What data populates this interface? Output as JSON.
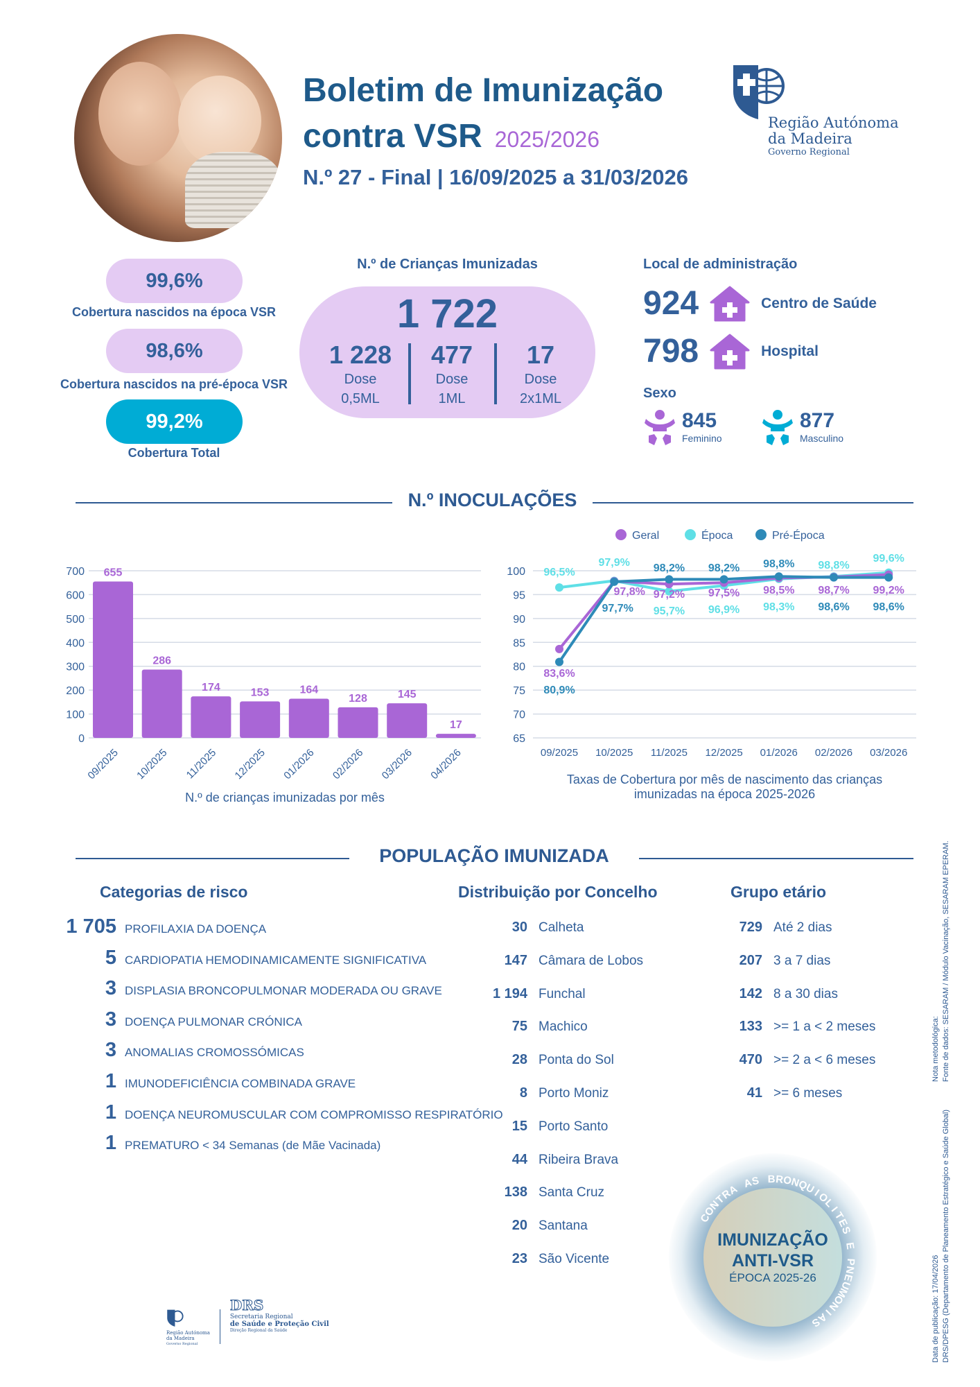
{
  "header": {
    "title_line1": "Boletim de Imunização",
    "title_line2": "contra VSR",
    "season": "2025/2026",
    "subtitle": "N.º 27 - Final | 16/09/2025 a 31/03/2026"
  },
  "logo": {
    "line1": "Região Autónoma",
    "line2": "da Madeira",
    "line3": "Governo Regional"
  },
  "coverage": [
    {
      "value": "99,6%",
      "label": "Cobertura nascidos na época VSR"
    },
    {
      "value": "98,6%",
      "label": "Cobertura nascidos na pré-época VSR"
    },
    {
      "value": "99,2%",
      "label": "Cobertura Total"
    }
  ],
  "immunized": {
    "title": "N.º de Crianças Imunizadas",
    "total": "1 722",
    "doses": [
      {
        "value": "1 228",
        "label1": "Dose",
        "label2": "0,5ML"
      },
      {
        "value": "477",
        "label1": "Dose",
        "label2": "1ML"
      },
      {
        "value": "17",
        "label1": "Dose",
        "label2": "2x1ML"
      }
    ]
  },
  "admin": {
    "title": "Local de administração",
    "items": [
      {
        "value": "924",
        "label": "Centro de Saúde"
      },
      {
        "value": "798",
        "label": "Hospital"
      }
    ]
  },
  "sex": {
    "title": "Sexo",
    "items": [
      {
        "value": "845",
        "label": "Feminino"
      },
      {
        "value": "877",
        "label": "Masculino"
      }
    ]
  },
  "sections": {
    "inoculations": "N.º INOCULAÇÕES",
    "population": "POPULAÇÃO IMUNIZADA"
  },
  "colors": {
    "purple": "#a966d6",
    "cyan": "#5fdfe6",
    "blue": "#2e8ab8",
    "text": "#33609a"
  },
  "chart_data": [
    {
      "type": "bar",
      "title": "",
      "caption": "N.º de crianças imunizadas por mês",
      "categories": [
        "09/2025",
        "10/2025",
        "11/2025",
        "12/2025",
        "01/2026",
        "02/2026",
        "03/2026",
        "04/2026"
      ],
      "values": [
        655,
        286,
        174,
        153,
        164,
        128,
        145,
        17
      ],
      "ylim": [
        0,
        700
      ],
      "yticks": [
        0,
        100,
        200,
        300,
        400,
        500,
        600,
        700
      ],
      "grid": true
    },
    {
      "type": "line",
      "caption_line1": "Taxas de Cobertura por mês de nascimento das crianças",
      "caption_line2": "imunizadas na época 2025-2026",
      "categories": [
        "09/2025",
        "10/2025",
        "11/2025",
        "12/2025",
        "01/2026",
        "02/2026",
        "03/2026"
      ],
      "ylim": [
        65,
        100
      ],
      "yticks": [
        65,
        70,
        75,
        80,
        85,
        90,
        95,
        100
      ],
      "grid": true,
      "legend": "top",
      "series": [
        {
          "name": "Geral",
          "values": [
            83.6,
            97.8,
            97.2,
            97.5,
            98.5,
            98.7,
            99.2
          ],
          "labels": [
            "83,6%",
            "97,8%",
            "97,2%",
            "97,5%",
            "98,5%",
            "98,7%",
            "99,2%"
          ]
        },
        {
          "name": "Época",
          "values": [
            96.5,
            97.9,
            95.7,
            96.9,
            98.3,
            98.8,
            99.6
          ],
          "labels": [
            "96,5%",
            "97,9%",
            "95,7%",
            "96,9%",
            "98,3%",
            "98,8%",
            "99,6%"
          ]
        },
        {
          "name": "Pré-Época",
          "values": [
            80.9,
            97.7,
            98.2,
            98.2,
            98.8,
            98.6,
            98.6
          ],
          "labels": [
            "80,9%",
            "97,7%",
            "98,2%",
            "98,2%",
            "98,8%",
            "98,6%",
            "98,6%"
          ]
        }
      ]
    }
  ],
  "risk": {
    "title": "Categorias de risco",
    "items": [
      {
        "value": "1 705",
        "label": "PROFILAXIA DA DOENÇA"
      },
      {
        "value": "5",
        "label": "CARDIOPATIA HEMODINAMICAMENTE SIGNIFICATIVA"
      },
      {
        "value": "3",
        "label": "DISPLASIA BRONCOPULMONAR MODERADA OU GRAVE"
      },
      {
        "value": "3",
        "label": "DOENÇA PULMONAR CRÓNICA"
      },
      {
        "value": "3",
        "label": "ANOMALIAS CROMOSSÓMICAS"
      },
      {
        "value": "1",
        "label": "IMUNODEFICIÊNCIA COMBINADA GRAVE"
      },
      {
        "value": "1",
        "label": "DOENÇA NEUROMUSCULAR COM COMPROMISSO RESPIRATÓRIO"
      },
      {
        "value": "1",
        "label": "PREMATURO < 34 Semanas (de Mãe Vacinada)"
      }
    ]
  },
  "county": {
    "title": "Distribuição por Concelho",
    "items": [
      {
        "value": "30",
        "label": "Calheta"
      },
      {
        "value": "147",
        "label": "Câmara de Lobos"
      },
      {
        "value": "1 194",
        "label": "Funchal"
      },
      {
        "value": "75",
        "label": "Machico"
      },
      {
        "value": "28",
        "label": "Ponta do Sol"
      },
      {
        "value": "8",
        "label": "Porto Moniz"
      },
      {
        "value": "15",
        "label": "Porto Santo"
      },
      {
        "value": "44",
        "label": "Ribeira Brava"
      },
      {
        "value": "138",
        "label": "Santa Cruz"
      },
      {
        "value": "20",
        "label": "Santana"
      },
      {
        "value": "23",
        "label": "São Vicente"
      }
    ]
  },
  "age": {
    "title": "Grupo etário",
    "items": [
      {
        "value": "729",
        "label": "Até 2 dias"
      },
      {
        "value": "207",
        "label": "3 a 7 dias"
      },
      {
        "value": "142",
        "label": "8 a 30 dias"
      },
      {
        "value": "133",
        "label": ">= 1 a < 2 meses"
      },
      {
        "value": "470",
        "label": ">= 2 a < 6 meses"
      },
      {
        "value": "41",
        "label": ">= 6 meses"
      }
    ]
  },
  "badge": {
    "arc": "CONTRA AS BRONQUIOLITES E PNEUMONIAS",
    "line1": "IMUNIZAÇÃO",
    "line2": "ANTI-VSR",
    "line3": "ÉPOCA 2025-26"
  },
  "side_notes": {
    "note_title": "Nota metodológica:",
    "note_text": "Fonte de dados: SESARAM / Módulo Vacinação, SESARAM EPERAM.",
    "pub_date": "Data de publicação: 17/04/2026",
    "pub_dept": "DRS/DPESG (Departamento de Planeamento Estratégico e Saúde Global)"
  },
  "footer": {
    "rag1": "Região Autónoma",
    "rag2": "da Madeira",
    "rag3": "Governo Regional",
    "drs": "DRS",
    "sec1": "Secretaria Regional",
    "sec2": "de Saúde e Proteção Civil",
    "sec3": "Direção Regional da Saúde"
  }
}
